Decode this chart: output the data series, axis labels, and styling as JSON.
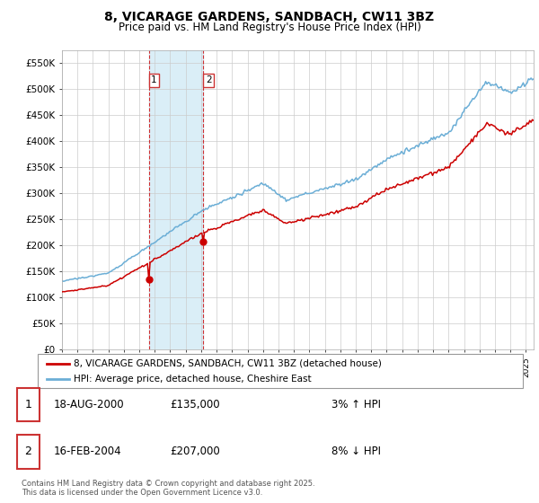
{
  "title": "8, VICARAGE GARDENS, SANDBACH, CW11 3BZ",
  "subtitle": "Price paid vs. HM Land Registry's House Price Index (HPI)",
  "legend_line1": "8, VICARAGE GARDENS, SANDBACH, CW11 3BZ (detached house)",
  "legend_line2": "HPI: Average price, detached house, Cheshire East",
  "transaction1_label": "1",
  "transaction1_date": "18-AUG-2000",
  "transaction1_price": "£135,000",
  "transaction1_hpi": "3% ↑ HPI",
  "transaction2_label": "2",
  "transaction2_date": "16-FEB-2004",
  "transaction2_price": "£207,000",
  "transaction2_hpi": "8% ↓ HPI",
  "footer": "Contains HM Land Registry data © Crown copyright and database right 2025.\nThis data is licensed under the Open Government Licence v3.0.",
  "property_color": "#cc0000",
  "hpi_color": "#6baed6",
  "highlight_color": "#daeef7",
  "ylim": [
    0,
    575000
  ],
  "yticks": [
    0,
    50000,
    100000,
    150000,
    200000,
    250000,
    300000,
    350000,
    400000,
    450000,
    500000,
    550000
  ],
  "ytick_labels": [
    "£0",
    "£50K",
    "£100K",
    "£150K",
    "£200K",
    "£250K",
    "£300K",
    "£350K",
    "£400K",
    "£450K",
    "£500K",
    "£550K"
  ],
  "xstart_year": 1995,
  "xend_year": 2025,
  "trans1_year": 2000.63,
  "trans2_year": 2004.12,
  "trans1_price": 135000,
  "trans2_price": 207000
}
